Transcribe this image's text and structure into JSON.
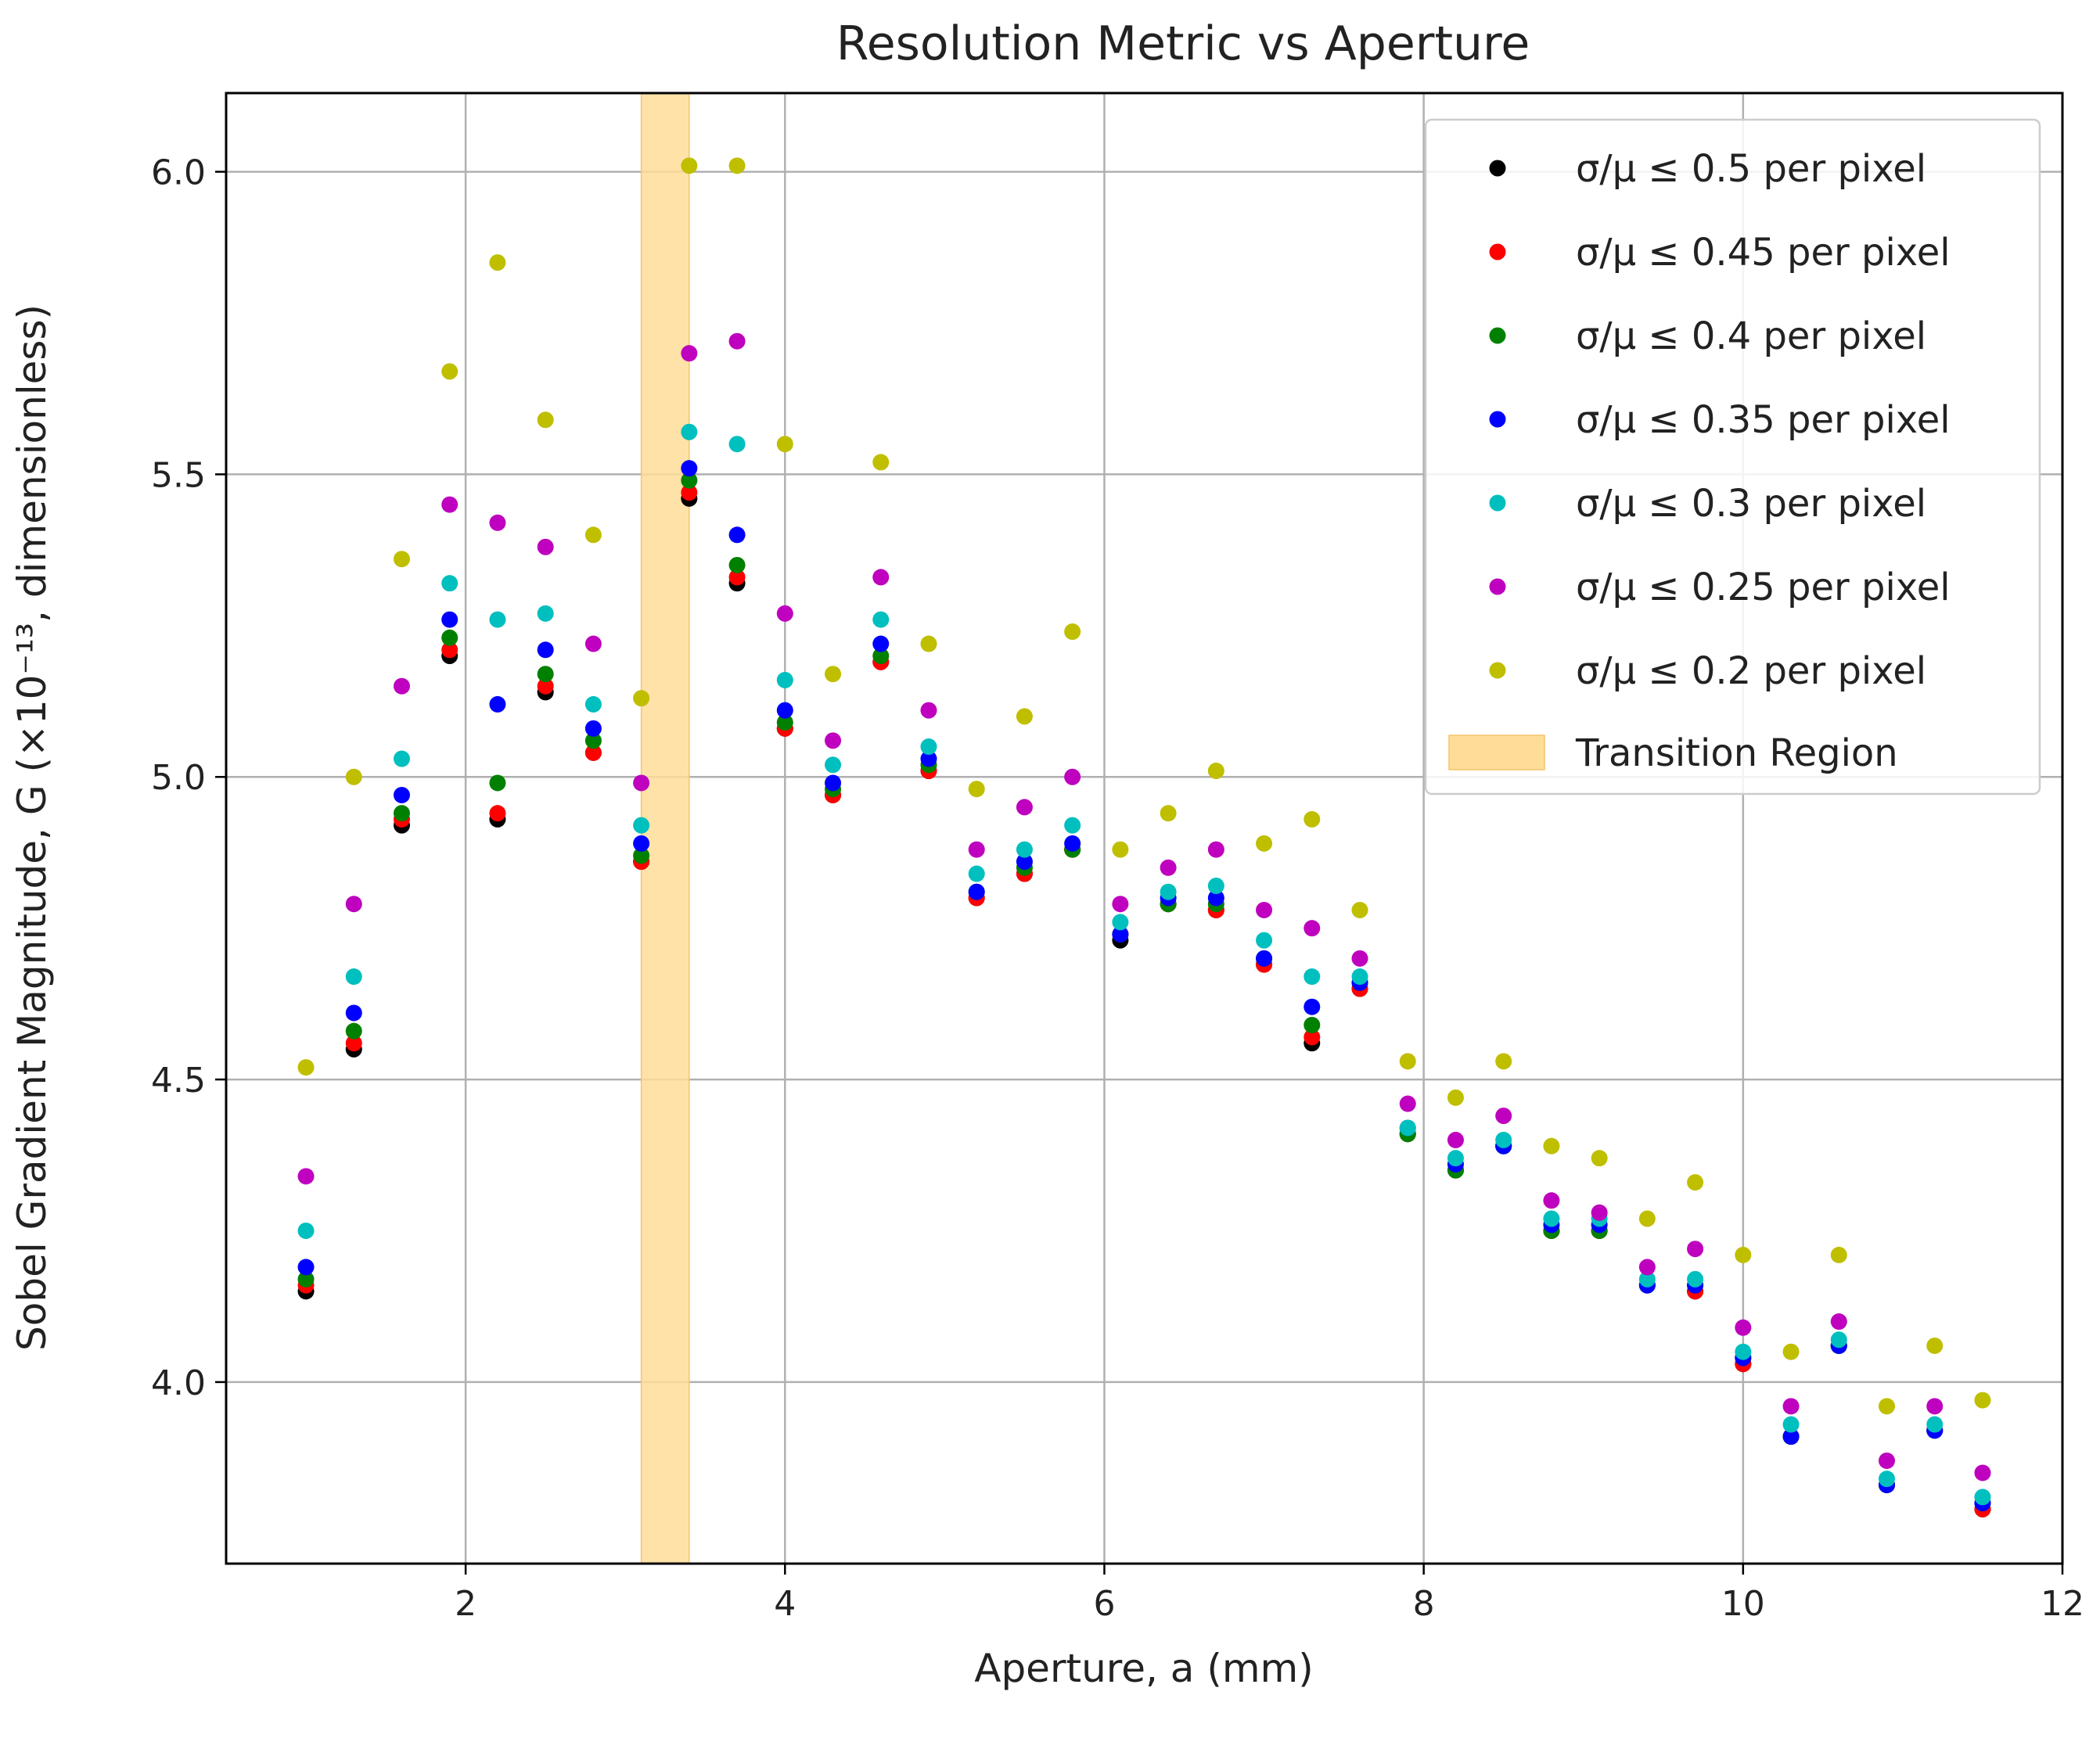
{
  "chart_data": {
    "type": "scatter",
    "title": "Resolution Metric vs Aperture",
    "xlabel": "Aperture, a (mm)",
    "ylabel": "Sobel Gradient Magnitude, G (×10⁻¹³, dimensionless)",
    "xlim": [
      0.5,
      12
    ],
    "ylim": [
      3.7,
      6.13
    ],
    "x_ticks": [
      2,
      4,
      6,
      8,
      10,
      12
    ],
    "x_tick_labels": [
      "2",
      "4",
      "6",
      "8",
      "10",
      "12"
    ],
    "y_ticks": [
      4.0,
      4.5,
      5.0,
      5.5,
      6.0
    ],
    "y_tick_labels": [
      "4.0",
      "4.5",
      "5.0",
      "5.5",
      "6.0"
    ],
    "grid": true,
    "legend_position": "top-right",
    "x": [
      1.0,
      1.3,
      1.6,
      1.9,
      2.2,
      2.5,
      2.8,
      3.1,
      3.4,
      3.7,
      4.0,
      4.3,
      4.6,
      4.9,
      5.2,
      5.5,
      5.8,
      6.1,
      6.4,
      6.7,
      7.0,
      7.3,
      7.6,
      7.9,
      8.2,
      8.5,
      8.8,
      9.1,
      9.4,
      9.7,
      10.0,
      10.3,
      10.6,
      10.9,
      11.2,
      11.5
    ],
    "series": [
      {
        "name": "σ/μ ≤ 0.5 per pixel",
        "color": "#000000",
        "values": [
          4.15,
          4.55,
          4.92,
          5.2,
          4.93,
          5.14,
          5.04,
          4.86,
          5.46,
          5.32,
          5.08,
          4.97,
          5.19,
          5.01,
          4.8,
          4.84,
          4.88,
          4.73,
          4.79,
          4.78,
          4.69,
          4.56,
          4.65,
          4.41,
          4.35,
          4.39,
          4.25,
          4.25,
          4.16,
          4.15,
          4.03,
          3.91,
          4.06,
          3.83,
          3.92,
          3.79
        ]
      },
      {
        "name": "σ/μ ≤ 0.45 per pixel",
        "color": "#ff0000",
        "values": [
          4.16,
          4.56,
          4.93,
          5.21,
          4.94,
          5.15,
          5.04,
          4.86,
          5.47,
          5.33,
          5.08,
          4.97,
          5.19,
          5.01,
          4.8,
          4.84,
          4.88,
          4.74,
          4.79,
          4.78,
          4.69,
          4.57,
          4.65,
          4.41,
          4.35,
          4.39,
          4.25,
          4.25,
          4.16,
          4.15,
          4.03,
          3.91,
          4.06,
          3.83,
          3.92,
          3.79
        ]
      },
      {
        "name": "σ/μ ≤ 0.4 per pixel",
        "color": "#008000",
        "values": [
          4.17,
          4.58,
          4.94,
          5.23,
          4.99,
          5.17,
          5.06,
          4.87,
          5.49,
          5.35,
          5.09,
          4.98,
          5.2,
          5.02,
          4.81,
          4.85,
          4.88,
          4.74,
          4.79,
          4.79,
          4.7,
          4.59,
          4.66,
          4.41,
          4.35,
          4.39,
          4.25,
          4.25,
          4.16,
          4.16,
          4.04,
          3.91,
          4.06,
          3.83,
          3.92,
          3.8
        ]
      },
      {
        "name": "σ/μ ≤ 0.35 per pixel",
        "color": "#0000ff",
        "values": [
          4.19,
          4.61,
          4.97,
          5.26,
          5.12,
          5.21,
          5.08,
          4.89,
          5.51,
          5.4,
          5.11,
          4.99,
          5.22,
          5.03,
          4.81,
          4.86,
          4.89,
          4.74,
          4.8,
          4.8,
          4.7,
          4.62,
          4.66,
          4.42,
          4.36,
          4.39,
          4.26,
          4.26,
          4.16,
          4.16,
          4.04,
          3.91,
          4.06,
          3.83,
          3.92,
          3.8
        ]
      },
      {
        "name": "σ/μ ≤ 0.3 per pixel",
        "color": "#00bfbf",
        "values": [
          4.25,
          4.67,
          5.03,
          5.32,
          5.26,
          5.27,
          5.12,
          4.92,
          5.57,
          5.55,
          5.16,
          5.02,
          5.26,
          5.05,
          4.84,
          4.88,
          4.92,
          4.76,
          4.81,
          4.82,
          4.73,
          4.67,
          4.67,
          4.42,
          4.37,
          4.4,
          4.27,
          4.27,
          4.17,
          4.17,
          4.05,
          3.93,
          4.07,
          3.84,
          3.93,
          3.81
        ]
      },
      {
        "name": "σ/μ ≤ 0.25 per pixel",
        "color": "#bf00bf",
        "values": [
          4.34,
          4.79,
          5.15,
          5.45,
          5.42,
          5.38,
          5.22,
          4.99,
          5.7,
          5.72,
          5.27,
          5.06,
          5.33,
          5.11,
          4.88,
          4.95,
          5.0,
          4.79,
          4.85,
          4.88,
          4.78,
          4.75,
          4.7,
          4.46,
          4.4,
          4.44,
          4.3,
          4.28,
          4.19,
          4.22,
          4.09,
          3.96,
          4.1,
          3.87,
          3.96,
          3.85
        ]
      },
      {
        "name": "σ/μ ≤ 0.2 per pixel",
        "color": "#bfbf00",
        "values": [
          4.52,
          5.0,
          5.36,
          5.67,
          5.85,
          5.59,
          5.4,
          5.13,
          6.01,
          6.01,
          5.55,
          5.17,
          5.52,
          5.22,
          4.98,
          5.1,
          5.24,
          4.88,
          4.94,
          5.01,
          4.89,
          4.93,
          4.78,
          4.53,
          4.47,
          4.53,
          4.39,
          4.37,
          4.27,
          4.33,
          4.21,
          4.05,
          4.21,
          3.96,
          4.06,
          3.97
        ]
      }
    ],
    "shaded_region": {
      "name": "Transition Region",
      "x_start": 3.1,
      "x_end": 3.4,
      "color": "#ffdd99"
    }
  }
}
